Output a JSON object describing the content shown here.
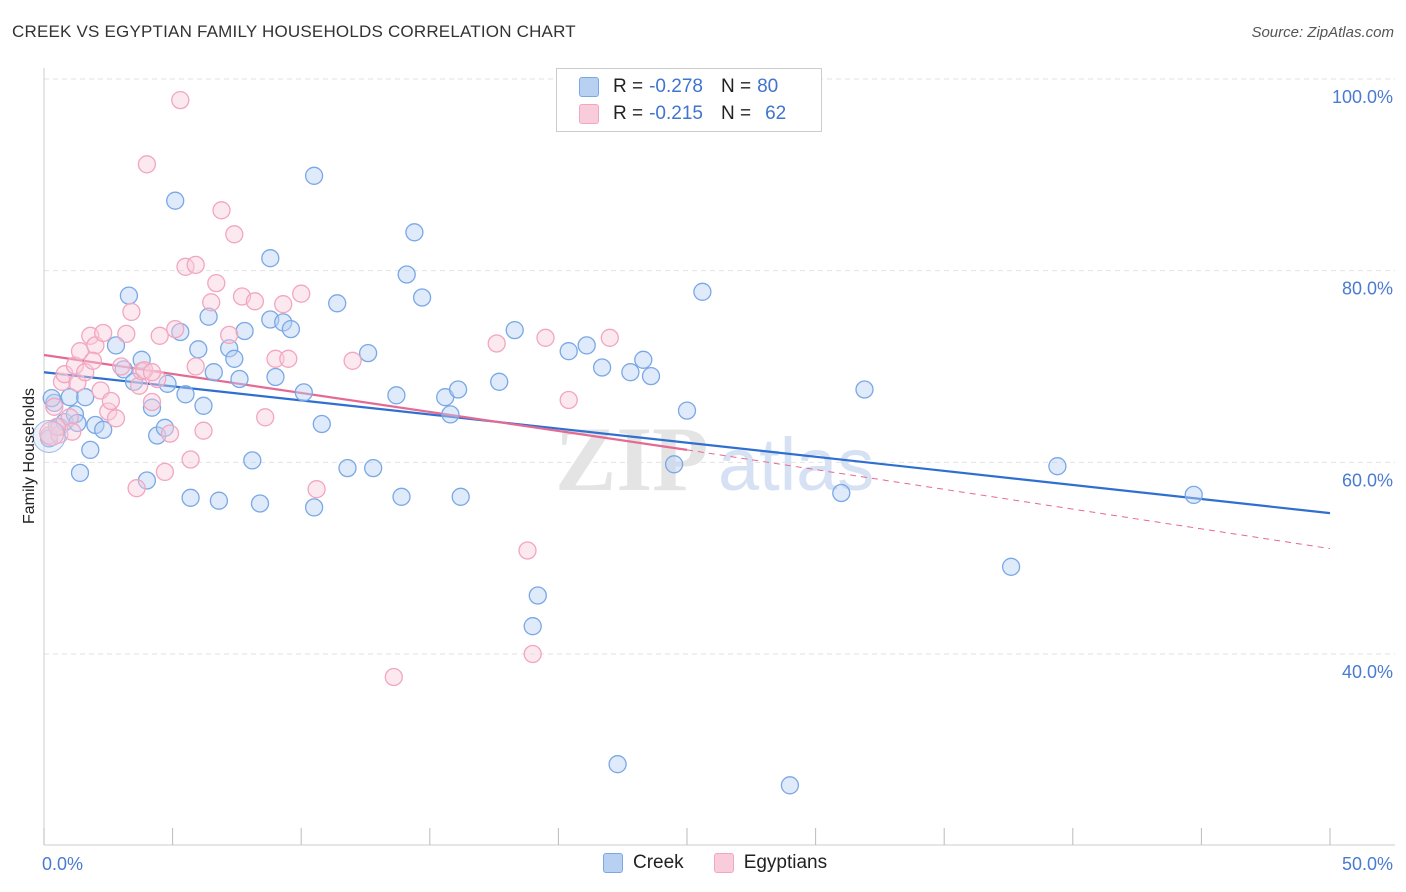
{
  "title": "CREEK VS EGYPTIAN FAMILY HOUSEHOLDS CORRELATION CHART",
  "source": "Source: ZipAtlas.com",
  "legend": {
    "series": [
      {
        "r_label": "R = ",
        "r_value": "-0.278",
        "n_label": "N = ",
        "n_value": "80"
      },
      {
        "r_label": "R = ",
        "r_value": "-0.215",
        "n_label": "N = ",
        "n_value": "62"
      }
    ]
  },
  "watermark": {
    "part1": "ZIP",
    "part2": "atlas"
  },
  "chart_data": {
    "type": "scatter",
    "title": "CREEK VS EGYPTIAN FAMILY HOUSEHOLDS CORRELATION CHART",
    "xlabel": "",
    "ylabel": "Family Households",
    "xlim": [
      0,
      50
    ],
    "ylim": [
      20,
      103
    ],
    "x_tick_labels": [
      {
        "value": 0,
        "label": "0.0%"
      },
      {
        "value": 50,
        "label": "50.0%"
      }
    ],
    "y_tick_labels": [
      {
        "value": 100,
        "label": "100.0%"
      },
      {
        "value": 80,
        "label": "80.0%"
      },
      {
        "value": 60,
        "label": "60.0%"
      },
      {
        "value": 40,
        "label": "40.0%"
      }
    ],
    "x_minor_ticks": [
      0,
      5,
      10,
      15,
      20,
      25,
      30,
      35,
      40,
      45,
      50
    ],
    "grid": true,
    "series": [
      {
        "name": "Creek",
        "color": "#7aa8e6",
        "fill": "#b8d1f3",
        "line_color": "#2f6fd0",
        "trend": {
          "x0": 0,
          "y0": 69.4,
          "x1": 50,
          "y1": 54.7
        },
        "points": [
          [
            0.2,
            62.5
          ],
          [
            0.4,
            66.2
          ],
          [
            0.6,
            63.7
          ],
          [
            0.8,
            64.2
          ],
          [
            1.0,
            66.8
          ],
          [
            1.2,
            65.0
          ],
          [
            1.3,
            64.1
          ],
          [
            1.4,
            58.9
          ],
          [
            1.6,
            66.8
          ],
          [
            1.8,
            61.3
          ],
          [
            2.0,
            63.9
          ],
          [
            2.3,
            63.4
          ],
          [
            2.8,
            72.2
          ],
          [
            3.1,
            69.7
          ],
          [
            3.3,
            77.4
          ],
          [
            3.5,
            68.4
          ],
          [
            3.8,
            70.7
          ],
          [
            4.0,
            58.1
          ],
          [
            4.2,
            65.7
          ],
          [
            4.4,
            62.8
          ],
          [
            4.7,
            63.6
          ],
          [
            4.8,
            68.2
          ],
          [
            5.1,
            87.3
          ],
          [
            5.3,
            73.6
          ],
          [
            5.5,
            67.1
          ],
          [
            5.7,
            56.3
          ],
          [
            6.0,
            71.8
          ],
          [
            6.2,
            65.9
          ],
          [
            6.4,
            75.2
          ],
          [
            6.6,
            69.4
          ],
          [
            6.8,
            56.0
          ],
          [
            7.2,
            71.9
          ],
          [
            7.4,
            70.8
          ],
          [
            7.6,
            68.7
          ],
          [
            7.8,
            73.7
          ],
          [
            8.1,
            60.2
          ],
          [
            8.4,
            55.7
          ],
          [
            8.8,
            81.3
          ],
          [
            8.8,
            74.9
          ],
          [
            9.0,
            68.9
          ],
          [
            9.3,
            74.6
          ],
          [
            9.6,
            73.9
          ],
          [
            10.1,
            67.3
          ],
          [
            10.5,
            89.9
          ],
          [
            10.8,
            64.0
          ],
          [
            11.4,
            76.6
          ],
          [
            11.8,
            59.4
          ],
          [
            12.6,
            71.4
          ],
          [
            12.8,
            59.4
          ],
          [
            13.7,
            67.0
          ],
          [
            13.9,
            56.4
          ],
          [
            14.1,
            79.6
          ],
          [
            14.4,
            84.0
          ],
          [
            14.7,
            77.2
          ],
          [
            15.6,
            66.8
          ],
          [
            15.8,
            65.0
          ],
          [
            16.1,
            67.6
          ],
          [
            16.2,
            56.4
          ],
          [
            17.7,
            68.4
          ],
          [
            18.3,
            73.8
          ],
          [
            19.0,
            42.9
          ],
          [
            19.2,
            46.1
          ],
          [
            20.4,
            71.6
          ],
          [
            21.1,
            72.2
          ],
          [
            21.7,
            69.9
          ],
          [
            22.3,
            28.5
          ],
          [
            22.8,
            69.4
          ],
          [
            23.3,
            70.7
          ],
          [
            23.6,
            69.0
          ],
          [
            24.5,
            59.8
          ],
          [
            25.0,
            65.4
          ],
          [
            25.6,
            77.8
          ],
          [
            29.0,
            26.3
          ],
          [
            31.0,
            56.8
          ],
          [
            31.9,
            67.6
          ],
          [
            37.6,
            49.1
          ],
          [
            39.4,
            59.6
          ],
          [
            44.7,
            56.6
          ],
          [
            0.3,
            66.7
          ],
          [
            10.5,
            55.3
          ]
        ]
      },
      {
        "name": "Egyptians",
        "color": "#f2a6bf",
        "fill": "#f9ccdb",
        "line_color": "#e46a94",
        "trend": {
          "x0": 0,
          "y0": 71.2,
          "x1": 25,
          "y1": 61.3
        },
        "trend_dashed": {
          "x0": 25,
          "y0": 61.3,
          "x1": 50,
          "y1": 51.0
        },
        "points": [
          [
            0.2,
            62.8
          ],
          [
            0.4,
            65.8
          ],
          [
            0.6,
            62.9
          ],
          [
            0.7,
            68.4
          ],
          [
            0.8,
            69.2
          ],
          [
            1.0,
            64.7
          ],
          [
            1.1,
            63.2
          ],
          [
            1.2,
            70.1
          ],
          [
            1.3,
            68.3
          ],
          [
            1.4,
            71.6
          ],
          [
            1.6,
            69.4
          ],
          [
            1.8,
            73.2
          ],
          [
            2.0,
            72.2
          ],
          [
            2.2,
            67.5
          ],
          [
            2.3,
            73.5
          ],
          [
            2.5,
            65.3
          ],
          [
            2.6,
            66.4
          ],
          [
            2.8,
            64.6
          ],
          [
            3.0,
            70.0
          ],
          [
            3.2,
            73.4
          ],
          [
            3.4,
            75.7
          ],
          [
            3.6,
            57.3
          ],
          [
            3.7,
            68.0
          ],
          [
            3.8,
            69.5
          ],
          [
            4.0,
            91.1
          ],
          [
            4.2,
            66.3
          ],
          [
            4.4,
            68.7
          ],
          [
            4.5,
            73.2
          ],
          [
            4.7,
            59.0
          ],
          [
            4.9,
            63.0
          ],
          [
            5.1,
            73.9
          ],
          [
            5.3,
            97.8
          ],
          [
            5.5,
            80.4
          ],
          [
            5.7,
            60.3
          ],
          [
            5.9,
            80.6
          ],
          [
            6.2,
            63.3
          ],
          [
            6.5,
            76.7
          ],
          [
            6.7,
            78.7
          ],
          [
            6.9,
            86.3
          ],
          [
            7.2,
            73.3
          ],
          [
            7.4,
            83.8
          ],
          [
            7.7,
            77.3
          ],
          [
            8.2,
            76.8
          ],
          [
            8.6,
            64.7
          ],
          [
            9.0,
            70.8
          ],
          [
            9.3,
            76.5
          ],
          [
            9.5,
            70.8
          ],
          [
            10.0,
            77.6
          ],
          [
            10.6,
            57.2
          ],
          [
            12.0,
            70.6
          ],
          [
            17.6,
            72.4
          ],
          [
            18.8,
            50.8
          ],
          [
            19.0,
            40.0
          ],
          [
            19.5,
            73.0
          ],
          [
            20.4,
            66.5
          ],
          [
            22.0,
            73.0
          ],
          [
            13.6,
            37.6
          ],
          [
            1.9,
            70.6
          ],
          [
            0.5,
            63.7
          ],
          [
            5.9,
            70.0
          ],
          [
            3.9,
            69.6
          ],
          [
            4.2,
            69.4
          ]
        ]
      }
    ]
  }
}
